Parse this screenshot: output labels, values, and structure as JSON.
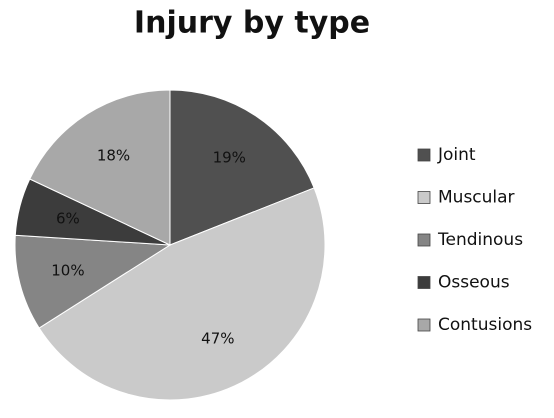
{
  "chart_data": {
    "type": "pie",
    "title": "Injury by type",
    "categories": [
      "Joint",
      "Muscular",
      "Tendinous",
      "Osseous",
      "Contusions"
    ],
    "values": [
      19,
      47,
      10,
      6,
      18
    ],
    "value_labels": [
      "19%",
      "47%",
      "10%",
      "6%",
      "18%"
    ],
    "colors": [
      "#505050",
      "#cacaca",
      "#858585",
      "#3c3c3c",
      "#a8a8a8"
    ],
    "legend": "right"
  }
}
